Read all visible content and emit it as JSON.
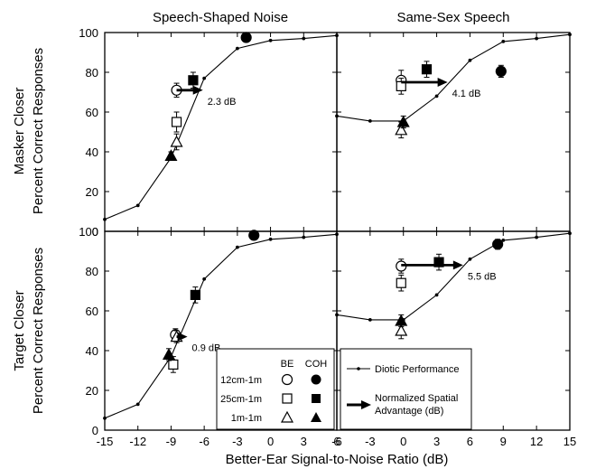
{
  "titles": {
    "left_column": "Speech-Shaped Noise",
    "right_column": "Same-Sex Speech",
    "top_row": "Masker Closer",
    "bottom_row": "Target Closer",
    "ylabel": "Percent Correct Responses",
    "xlabel": "Better-Ear Signal-to-Noise Ratio (dB)"
  },
  "legend": {
    "col_be": "BE",
    "col_coh": "COH",
    "rows": [
      "12cm-1m",
      "25cm-1m",
      "1m-1m"
    ],
    "diotic_label": "Diotic Performance",
    "arrow_label_line1": "Normalized Spatial",
    "arrow_label_line2": "Advantage (dB)"
  },
  "chart_data": [
    {
      "type": "line",
      "panel": "top-left",
      "title": "Speech-Shaped Noise",
      "row_label": "Masker Closer",
      "xlim": [
        -15,
        6
      ],
      "ylim": [
        0,
        100
      ],
      "x_ticks": [],
      "y_ticks": [
        0,
        20,
        40,
        60,
        80,
        100
      ],
      "diotic": {
        "x": [
          -15,
          -12,
          -9,
          -6,
          -3,
          0,
          3,
          6
        ],
        "y": [
          6,
          13,
          37,
          77,
          92,
          96,
          97,
          98.5
        ]
      },
      "points": [
        {
          "series": "12cm-1m",
          "mode": "BE",
          "x": -8.5,
          "y": 71,
          "err": 3.5
        },
        {
          "series": "12cm-1m",
          "mode": "COH",
          "x": -2.2,
          "y": 97.5,
          "err": 0
        },
        {
          "series": "25cm-1m",
          "mode": "BE",
          "x": -8.5,
          "y": 55,
          "err": 5
        },
        {
          "series": "25cm-1m",
          "mode": "COH",
          "x": -7,
          "y": 76,
          "err": 4
        },
        {
          "series": "1m-1m",
          "mode": "BE",
          "x": -8.5,
          "y": 45,
          "err": 4
        },
        {
          "series": "1m-1m",
          "mode": "COH",
          "x": -9,
          "y": 38,
          "err": 2
        }
      ],
      "advantage_arrow": {
        "x_start": -8.5,
        "x_end": -6.2,
        "y": 71,
        "label": "2.3 dB"
      }
    },
    {
      "type": "line",
      "panel": "top-right",
      "title": "Same-Sex Speech",
      "xlim": [
        -6,
        15
      ],
      "ylim": [
        0,
        100
      ],
      "x_ticks": [],
      "diotic": {
        "x": [
          -6,
          -3,
          0,
          3,
          6,
          9,
          12,
          15
        ],
        "y": [
          58,
          55.5,
          55.5,
          68,
          86,
          95.5,
          97,
          99
        ]
      },
      "points": [
        {
          "series": "12cm-1m",
          "mode": "BE",
          "x": -0.2,
          "y": 76,
          "err": 5
        },
        {
          "series": "12cm-1m",
          "mode": "COH",
          "x": 8.8,
          "y": 80.5,
          "err": 3
        },
        {
          "series": "25cm-1m",
          "mode": "BE",
          "x": -0.2,
          "y": 73,
          "err": 4
        },
        {
          "series": "25cm-1m",
          "mode": "COH",
          "x": 2.1,
          "y": 81.5,
          "err": 4
        },
        {
          "series": "1m-1m",
          "mode": "BE",
          "x": -0.2,
          "y": 51,
          "err": 4
        },
        {
          "series": "1m-1m",
          "mode": "COH",
          "x": 0,
          "y": 55,
          "err": 3
        }
      ],
      "advantage_arrow": {
        "x_start": -0.2,
        "x_end": 3.9,
        "y": 75,
        "label": "4.1 dB"
      }
    },
    {
      "type": "line",
      "panel": "bottom-left",
      "row_label": "Target Closer",
      "xlim": [
        -15,
        6
      ],
      "ylim": [
        0,
        100
      ],
      "x_ticks": [
        -15,
        -12,
        -9,
        -6,
        -3,
        0,
        3,
        6
      ],
      "y_ticks": [
        0,
        20,
        40,
        60,
        80,
        100
      ],
      "diotic": {
        "x": [
          -15,
          -12,
          -9,
          -6,
          -3,
          0,
          3,
          6
        ],
        "y": [
          6,
          13,
          37,
          76,
          92,
          96,
          97,
          98.5
        ]
      },
      "points": [
        {
          "series": "12cm-1m",
          "mode": "BE",
          "x": -8.6,
          "y": 48,
          "err": 3
        },
        {
          "series": "12cm-1m",
          "mode": "COH",
          "x": -1.5,
          "y": 98,
          "err": 0
        },
        {
          "series": "25cm-1m",
          "mode": "BE",
          "x": -8.8,
          "y": 33,
          "err": 4
        },
        {
          "series": "25cm-1m",
          "mode": "COH",
          "x": -6.8,
          "y": 68,
          "err": 4
        },
        {
          "series": "1m-1m",
          "mode": "BE",
          "x": -8.5,
          "y": 47,
          "err": 3
        },
        {
          "series": "1m-1m",
          "mode": "COH",
          "x": -9.2,
          "y": 38,
          "err": 3
        }
      ],
      "advantage_arrow": {
        "x_start": -8.5,
        "x_end": -7.6,
        "y": 47,
        "label": "0.9 dB"
      }
    },
    {
      "type": "line",
      "panel": "bottom-right",
      "xlim": [
        -6,
        15
      ],
      "ylim": [
        0,
        100
      ],
      "x_ticks": [
        -6,
        -3,
        0,
        3,
        6,
        9,
        12,
        15
      ],
      "diotic": {
        "x": [
          -6,
          -3,
          0,
          3,
          6,
          9,
          12,
          15
        ],
        "y": [
          58,
          55.5,
          55.5,
          68,
          86,
          95.5,
          97,
          99
        ]
      },
      "points": [
        {
          "series": "12cm-1m",
          "mode": "BE",
          "x": -0.2,
          "y": 82.5,
          "err": 3.5
        },
        {
          "series": "12cm-1m",
          "mode": "COH",
          "x": 8.5,
          "y": 93.5,
          "err": 2.5
        },
        {
          "series": "25cm-1m",
          "mode": "BE",
          "x": -0.2,
          "y": 74,
          "err": 4
        },
        {
          "series": "25cm-1m",
          "mode": "COH",
          "x": 3.2,
          "y": 84.5,
          "err": 4
        },
        {
          "series": "1m-1m",
          "mode": "BE",
          "x": -0.2,
          "y": 50,
          "err": 4
        },
        {
          "series": "1m-1m",
          "mode": "COH",
          "x": -0.2,
          "y": 55,
          "err": 3
        }
      ],
      "advantage_arrow": {
        "x_start": -0.2,
        "x_end": 5.3,
        "y": 83,
        "label": "5.5 dB"
      }
    }
  ]
}
